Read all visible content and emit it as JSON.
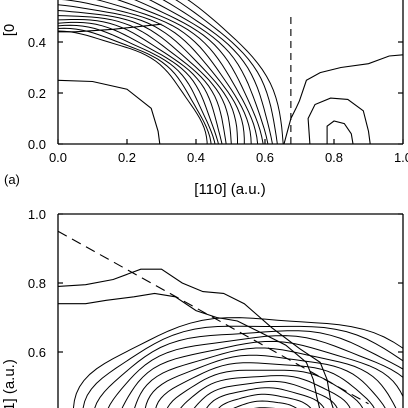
{
  "colors": {
    "ink": "#000000",
    "background": "#ffffff"
  },
  "chart_data": [
    {
      "type": "contour",
      "panel_label": "(a)",
      "xlabel": "[110]  (a.u.)",
      "ylabel": "[0",
      "xlim": [
        0.0,
        1.0
      ],
      "ylim": [
        0.0,
        0.4
      ],
      "x_ticks": [
        "0.0",
        "0.2",
        "0.4",
        "0.6",
        "0.8",
        "1.0"
      ],
      "x_tick_values": [
        0.0,
        0.2,
        0.4,
        0.6,
        0.8,
        1.0
      ],
      "y_ticks": [
        "0.0",
        "0.2",
        "0.4"
      ],
      "y_tick_values": [
        0.0,
        0.2,
        0.4
      ],
      "dashed_line": {
        "x": [
          0.675,
          0.675
        ],
        "y": [
          0.0,
          0.5
        ]
      },
      "contour_band": {
        "center": [
          0.0,
          -0.05
        ],
        "r_inner": 0.43,
        "r_outer": 0.66,
        "count": 16,
        "y_from": 0.0,
        "y_to": 0.55
      },
      "outer_lines": [
        [
          [
            0.0,
            0.25
          ],
          [
            0.1,
            0.245
          ],
          [
            0.2,
            0.215
          ],
          [
            0.27,
            0.14
          ],
          [
            0.29,
            0.05
          ],
          [
            0.295,
            0.0
          ]
        ],
        [
          [
            0.0,
            0.44
          ],
          [
            0.05,
            0.44
          ],
          [
            0.16,
            0.45
          ],
          [
            0.3,
            0.47
          ]
        ],
        [
          [
            0.78,
            0.0
          ],
          [
            0.78,
            0.07
          ],
          [
            0.8,
            0.09
          ],
          [
            0.83,
            0.08
          ],
          [
            0.85,
            0.04
          ],
          [
            0.855,
            0.0
          ]
        ],
        [
          [
            0.73,
            0.0
          ],
          [
            0.725,
            0.1
          ],
          [
            0.745,
            0.155
          ],
          [
            0.79,
            0.18
          ],
          [
            0.84,
            0.175
          ],
          [
            0.885,
            0.13
          ],
          [
            0.9,
            0.05
          ],
          [
            0.905,
            0.0
          ]
        ],
        [
          [
            0.655,
            0.0
          ],
          [
            0.675,
            0.1
          ],
          [
            0.69,
            0.14
          ],
          [
            0.7,
            0.17
          ],
          [
            0.72,
            0.25
          ],
          [
            0.76,
            0.28
          ],
          [
            0.82,
            0.3
          ],
          [
            0.9,
            0.315
          ],
          [
            0.96,
            0.345
          ],
          [
            1.0,
            0.35
          ]
        ]
      ]
    },
    {
      "type": "contour",
      "xlim": [
        0.0,
        1.0
      ],
      "ylim": [
        0.4,
        1.0
      ],
      "ylabel": "1]  (a.u.)",
      "y_ticks": [
        "0.6",
        "0.8",
        "1.0"
      ],
      "y_tick_values": [
        0.6,
        0.8,
        1.0
      ],
      "dashed_line": {
        "x": [
          0.0,
          0.9
        ],
        "y": [
          0.95,
          0.45
        ]
      },
      "contour_band": {
        "center": [
          0.6,
          0.4
        ],
        "r_x_inner": 0.05,
        "r_x_outer": 0.56,
        "r_y_inner": 0.02,
        "r_y_outer": 0.3,
        "count": 16
      },
      "outer_lines": [
        [
          [
            0.0,
            0.74
          ],
          [
            0.08,
            0.74
          ],
          [
            0.14,
            0.75
          ],
          [
            0.22,
            0.76
          ],
          [
            0.28,
            0.77
          ],
          [
            0.34,
            0.76
          ],
          [
            0.4,
            0.72
          ],
          [
            0.46,
            0.7
          ],
          [
            0.52,
            0.69
          ],
          [
            0.58,
            0.66
          ],
          [
            0.66,
            0.62
          ],
          [
            0.72,
            0.57
          ],
          [
            0.74,
            0.52
          ],
          [
            0.75,
            0.47
          ],
          [
            0.76,
            0.43
          ],
          [
            0.76,
            0.4
          ]
        ],
        [
          [
            0.0,
            0.79
          ],
          [
            0.08,
            0.795
          ],
          [
            0.16,
            0.81
          ],
          [
            0.24,
            0.84
          ],
          [
            0.3,
            0.84
          ],
          [
            0.36,
            0.8
          ],
          [
            0.42,
            0.775
          ],
          [
            0.48,
            0.77
          ],
          [
            0.54,
            0.74
          ],
          [
            0.62,
            0.67
          ],
          [
            0.7,
            0.61
          ],
          [
            0.76,
            0.57
          ],
          [
            0.78,
            0.52
          ],
          [
            0.79,
            0.46
          ],
          [
            0.8,
            0.43
          ],
          [
            0.8,
            0.4
          ]
        ]
      ]
    }
  ]
}
